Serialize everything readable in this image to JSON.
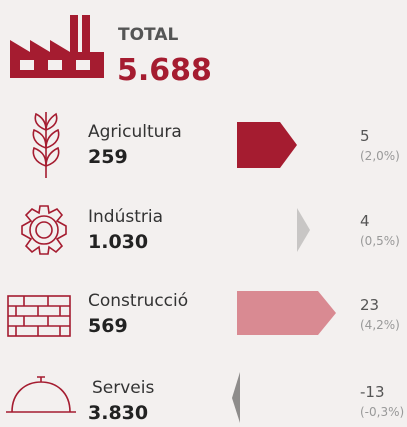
{
  "header": {
    "title": "TOTAL",
    "total": "5.688"
  },
  "sectors": [
    {
      "name": "Agricultura",
      "total": "259",
      "change": 5,
      "change_pct": "(2,0%)"
    },
    {
      "name": "Indústria",
      "total": "1.030",
      "change": 4,
      "change_pct": "(0,5%)"
    },
    {
      "name": "Construcció",
      "total": "569",
      "change": 23,
      "change_pct": "(4,2%)"
    },
    {
      "name": "Serveis",
      "total": "3.830",
      "change": -13,
      "change_pct": "(-0,3%)"
    }
  ]
}
